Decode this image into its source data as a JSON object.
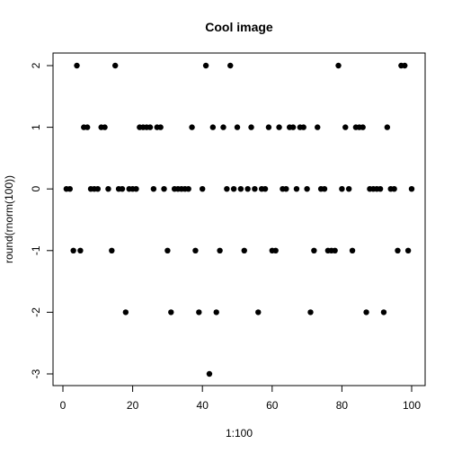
{
  "chart_data": {
    "type": "scatter",
    "title": "Cool image",
    "xlabel": "1:100",
    "ylabel": "round(rnorm(100))",
    "xlim": [
      0,
      100
    ],
    "ylim": [
      -3,
      2
    ],
    "x_ticks": [
      "0",
      "20",
      "40",
      "60",
      "80",
      "100"
    ],
    "y_ticks": [
      "-3",
      "-2",
      "-1",
      "0",
      "1",
      "2"
    ],
    "grid": false,
    "point_color": "#000000",
    "series": [
      {
        "x": [
          1,
          2,
          3,
          4,
          5,
          6,
          7,
          8,
          9,
          10,
          11,
          12,
          13,
          14,
          15,
          16,
          17,
          18,
          19,
          20,
          21,
          22,
          23,
          24,
          25,
          26,
          27,
          28,
          29,
          30,
          31,
          32,
          33,
          34,
          35,
          36,
          37,
          38,
          39,
          40,
          41,
          42,
          43,
          44,
          45,
          46,
          47,
          48,
          49,
          50,
          51,
          52,
          53,
          54,
          55,
          56,
          57,
          58,
          59,
          60,
          61,
          62,
          63,
          64,
          65,
          66,
          67,
          68,
          69,
          70,
          71,
          72,
          73,
          74,
          75,
          76,
          77,
          78,
          79,
          80,
          81,
          82,
          83,
          84,
          85,
          86,
          87,
          88,
          89,
          90,
          91,
          92,
          93,
          94,
          95,
          96,
          97,
          98,
          99,
          100
        ],
        "y": [
          0,
          0,
          -1,
          2,
          -1,
          1,
          1,
          0,
          0,
          0,
          1,
          1,
          0,
          -1,
          2,
          0,
          0,
          -2,
          0,
          0,
          0,
          1,
          1,
          1,
          1,
          0,
          1,
          1,
          0,
          -1,
          -2,
          0,
          0,
          0,
          0,
          0,
          1,
          -1,
          -2,
          0,
          2,
          -3,
          1,
          -2,
          -1,
          1,
          0,
          2,
          0,
          1,
          0,
          -1,
          0,
          1,
          0,
          -2,
          0,
          0,
          1,
          -1,
          -1,
          1,
          0,
          0,
          1,
          1,
          0,
          1,
          1,
          0,
          -2,
          -1,
          1,
          0,
          0,
          -1,
          -1,
          -1,
          2,
          0,
          1,
          0,
          -1,
          1,
          1,
          1,
          -2,
          0,
          0,
          0,
          0,
          -2,
          1,
          0,
          0,
          -1,
          2,
          2,
          -1,
          0
        ]
      }
    ]
  }
}
